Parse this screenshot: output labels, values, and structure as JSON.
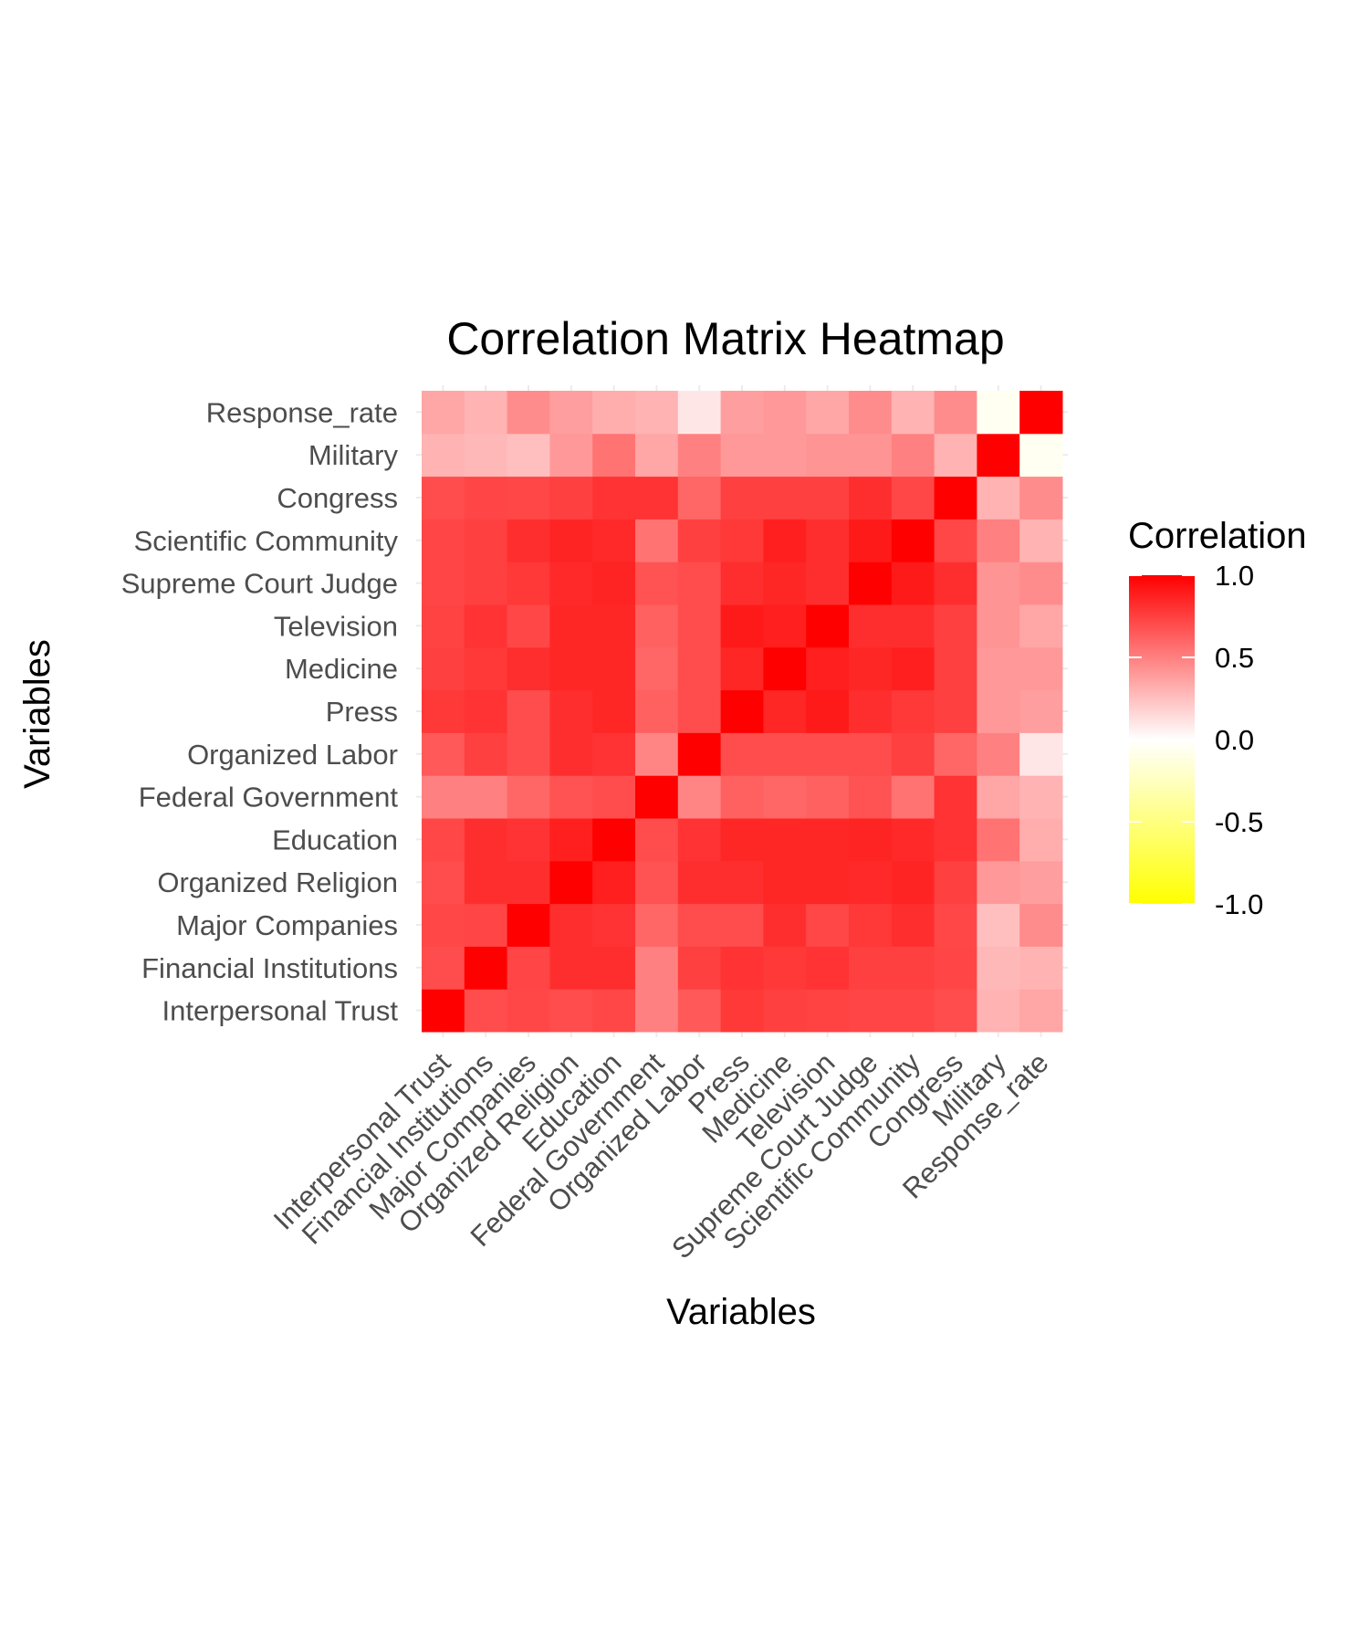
{
  "chart_data": {
    "type": "heatmap",
    "title": "Correlation Matrix Heatmap",
    "xlabel": "Variables",
    "ylabel": "Variables",
    "variables": [
      "Interpersonal Trust",
      "Financial Institutions",
      "Major Companies",
      "Organized Religion",
      "Education",
      "Federal Government",
      "Organized Labor",
      "Press",
      "Medicine",
      "Television",
      "Supreme Court Judge",
      "Scientific Community",
      "Congress",
      "Military",
      "Response_rate"
    ],
    "matrix": [
      [
        1.0,
        0.7,
        0.72,
        0.7,
        0.72,
        0.5,
        0.65,
        0.78,
        0.75,
        0.74,
        0.73,
        0.73,
        0.7,
        0.3,
        0.35
      ],
      [
        0.7,
        1.0,
        0.73,
        0.82,
        0.82,
        0.5,
        0.75,
        0.8,
        0.78,
        0.8,
        0.75,
        0.75,
        0.73,
        0.28,
        0.3
      ],
      [
        0.72,
        0.73,
        1.0,
        0.82,
        0.8,
        0.6,
        0.7,
        0.7,
        0.82,
        0.72,
        0.78,
        0.82,
        0.72,
        0.25,
        0.45
      ],
      [
        0.7,
        0.82,
        0.82,
        1.0,
        0.88,
        0.68,
        0.82,
        0.82,
        0.85,
        0.85,
        0.84,
        0.86,
        0.75,
        0.4,
        0.38
      ],
      [
        0.72,
        0.82,
        0.8,
        0.88,
        1.0,
        0.7,
        0.8,
        0.85,
        0.85,
        0.85,
        0.86,
        0.84,
        0.8,
        0.55,
        0.32
      ],
      [
        0.5,
        0.5,
        0.6,
        0.68,
        0.7,
        1.0,
        0.48,
        0.62,
        0.6,
        0.62,
        0.68,
        0.55,
        0.8,
        0.35,
        0.3
      ],
      [
        0.65,
        0.75,
        0.7,
        0.82,
        0.8,
        0.48,
        1.0,
        0.7,
        0.7,
        0.7,
        0.7,
        0.75,
        0.6,
        0.5,
        0.1
      ],
      [
        0.78,
        0.8,
        0.7,
        0.82,
        0.85,
        0.62,
        0.7,
        1.0,
        0.85,
        0.9,
        0.82,
        0.78,
        0.75,
        0.4,
        0.38
      ],
      [
        0.75,
        0.78,
        0.82,
        0.85,
        0.85,
        0.6,
        0.7,
        0.85,
        1.0,
        0.88,
        0.85,
        0.88,
        0.75,
        0.4,
        0.4
      ],
      [
        0.74,
        0.8,
        0.72,
        0.85,
        0.85,
        0.62,
        0.7,
        0.9,
        0.88,
        1.0,
        0.82,
        0.82,
        0.75,
        0.42,
        0.35
      ],
      [
        0.73,
        0.75,
        0.78,
        0.84,
        0.86,
        0.68,
        0.7,
        0.82,
        0.85,
        0.82,
        1.0,
        0.9,
        0.82,
        0.42,
        0.45
      ],
      [
        0.73,
        0.75,
        0.82,
        0.86,
        0.84,
        0.55,
        0.75,
        0.78,
        0.88,
        0.82,
        0.9,
        1.0,
        0.72,
        0.5,
        0.3
      ],
      [
        0.7,
        0.73,
        0.72,
        0.75,
        0.8,
        0.8,
        0.6,
        0.75,
        0.75,
        0.75,
        0.82,
        0.72,
        1.0,
        0.3,
        0.45
      ],
      [
        0.3,
        0.28,
        0.25,
        0.4,
        0.55,
        0.35,
        0.5,
        0.4,
        0.4,
        0.42,
        0.42,
        0.5,
        0.3,
        1.0,
        -0.05
      ],
      [
        0.35,
        0.3,
        0.45,
        0.38,
        0.32,
        0.3,
        0.1,
        0.38,
        0.4,
        0.35,
        0.45,
        0.3,
        0.45,
        -0.05,
        1.0
      ]
    ],
    "legend": {
      "title": "Correlation",
      "placement": "right",
      "range": [
        -1.0,
        1.0
      ],
      "breaks": [
        "1.0",
        "0.5",
        "0.0",
        "-0.5",
        "-1.0"
      ],
      "break_values": [
        1.0,
        0.5,
        0.0,
        -0.5,
        -1.0
      ],
      "low_color": "#ffff00",
      "mid_color": "#ffffff",
      "high_color": "#ff0000"
    },
    "grid": true
  }
}
